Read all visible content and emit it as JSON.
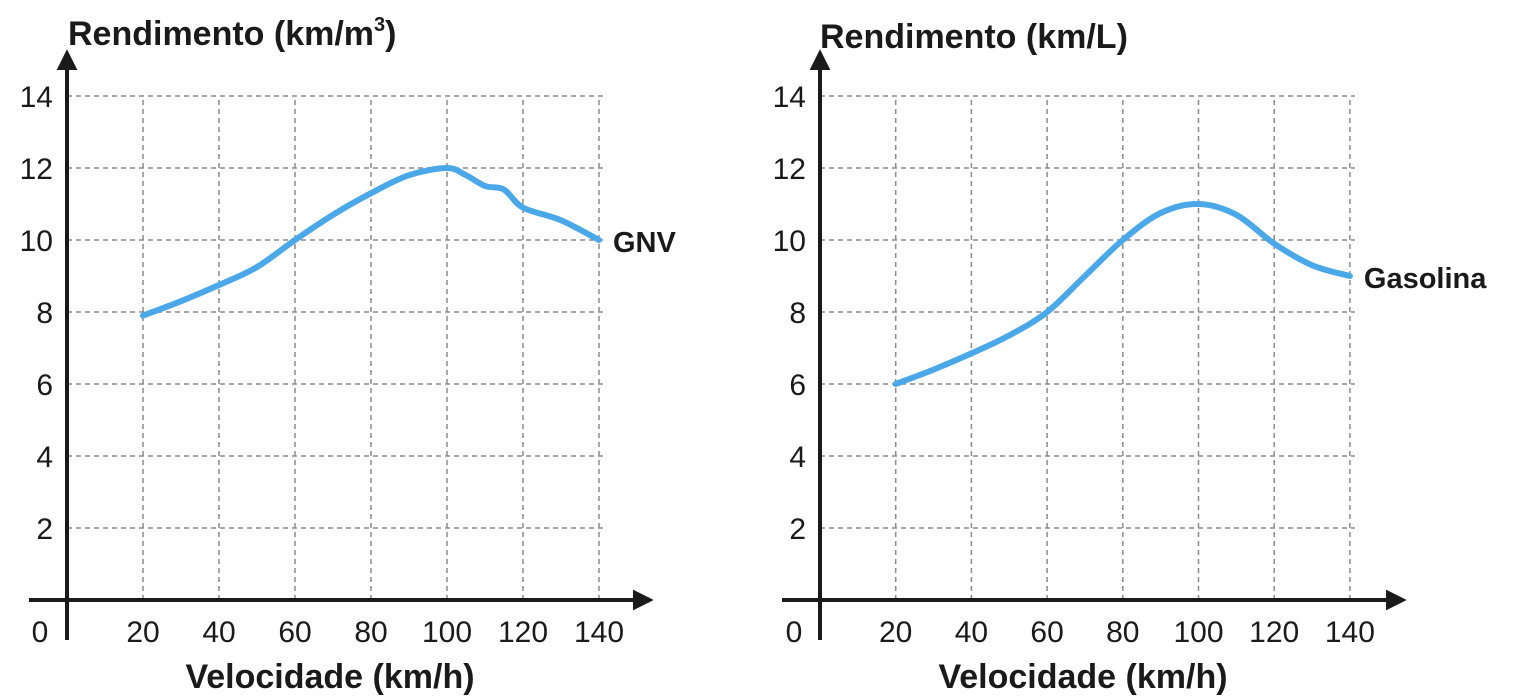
{
  "chart_data": [
    {
      "type": "line",
      "ylabel": "Rendimento (km/m",
      "ylabel_superscript": "3",
      "ylabel_suffix": ")",
      "xlabel": "Velocidade (km/h)",
      "origin_label": "0",
      "xlim": [
        0,
        140
      ],
      "ylim": [
        0,
        14
      ],
      "x_ticks": [
        20,
        40,
        60,
        80,
        100,
        120,
        140
      ],
      "y_ticks": [
        2,
        4,
        6,
        8,
        10,
        12,
        14
      ],
      "grid": true,
      "color": "#4aa8e8",
      "series": [
        {
          "name": "GNV",
          "points": [
            [
              20,
              7.9
            ],
            [
              30,
              8.3
            ],
            [
              40,
              8.75
            ],
            [
              50,
              9.25
            ],
            [
              60,
              10.0
            ],
            [
              70,
              10.7
            ],
            [
              80,
              11.3
            ],
            [
              90,
              11.8
            ],
            [
              100,
              12.0
            ],
            [
              105,
              11.8
            ],
            [
              110,
              11.5
            ],
            [
              115,
              11.4
            ],
            [
              120,
              10.9
            ],
            [
              130,
              10.55
            ],
            [
              140,
              10.0
            ]
          ]
        }
      ]
    },
    {
      "type": "line",
      "ylabel": "Rendimento (km/L)",
      "ylabel_superscript": "",
      "ylabel_suffix": "",
      "xlabel": "Velocidade (km/h)",
      "origin_label": "0",
      "xlim": [
        0,
        140
      ],
      "ylim": [
        0,
        14
      ],
      "x_ticks": [
        20,
        40,
        60,
        80,
        100,
        120,
        140
      ],
      "y_ticks": [
        2,
        4,
        6,
        8,
        10,
        12,
        14
      ],
      "grid": true,
      "color": "#4aa8e8",
      "series": [
        {
          "name": "Gasolina",
          "points": [
            [
              20,
              6.0
            ],
            [
              30,
              6.4
            ],
            [
              40,
              6.85
            ],
            [
              50,
              7.35
            ],
            [
              60,
              8.0
            ],
            [
              70,
              9.0
            ],
            [
              80,
              10.0
            ],
            [
              90,
              10.75
            ],
            [
              100,
              11.0
            ],
            [
              110,
              10.7
            ],
            [
              120,
              9.9
            ],
            [
              130,
              9.3
            ],
            [
              140,
              9.0
            ]
          ]
        }
      ]
    }
  ]
}
